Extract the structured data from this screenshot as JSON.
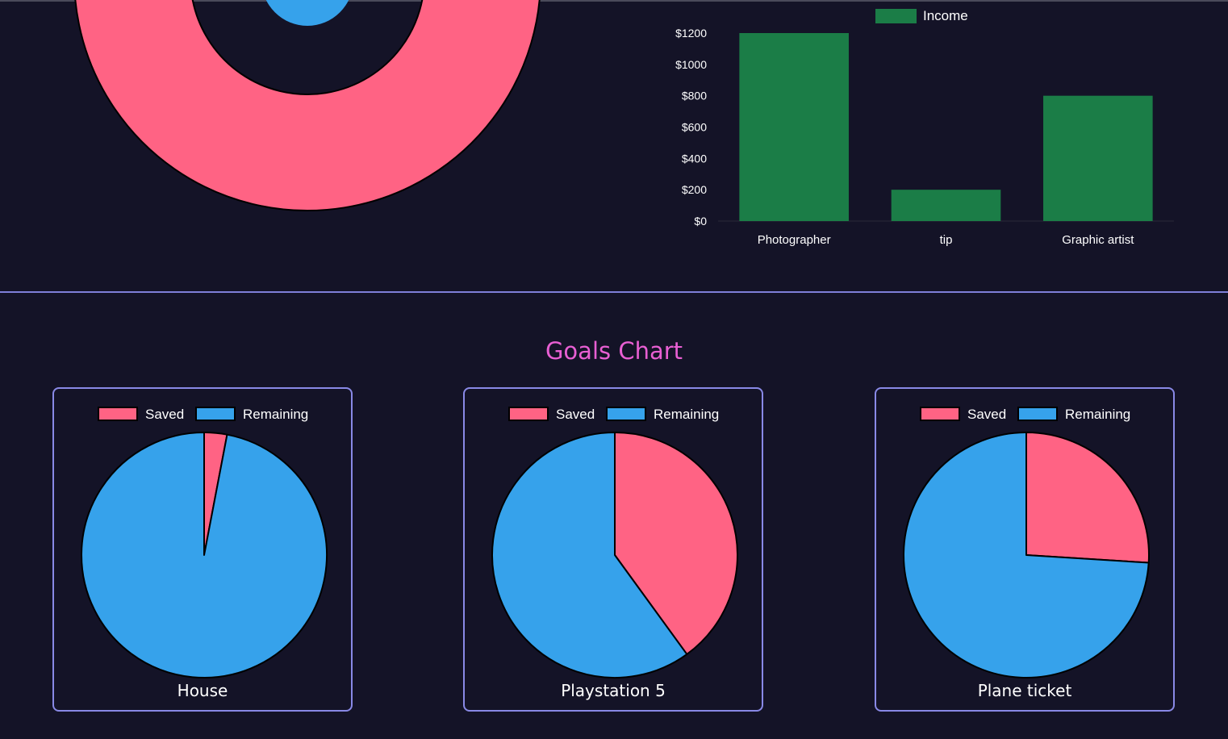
{
  "colors": {
    "background": "#141327",
    "saved": "#ff6384",
    "remaining": "#36a2eb",
    "income": "#1b7d47",
    "divider": "#7f7fd9",
    "title": "#e85fd3"
  },
  "chart_data": [
    {
      "type": "pie",
      "variant": "doughnut",
      "title": "",
      "note": "Top-left doughnut, cropped by the top edge of the viewport",
      "slices": [
        {
          "color": "#36a2eb",
          "start_deg": -58,
          "end_deg": 40,
          "visible": true
        },
        {
          "color": "#ff6384",
          "start_deg": 40,
          "end_deg": 302,
          "visible": true
        }
      ]
    },
    {
      "type": "bar",
      "title": "",
      "legend": [
        "Income"
      ],
      "categories": [
        "Photographer",
        "tip",
        "Graphic artist"
      ],
      "series": [
        {
          "name": "Income",
          "values": [
            1200,
            200,
            800
          ]
        }
      ],
      "ylim": [
        0,
        1200
      ],
      "yticks": [
        "$0",
        "$200",
        "$400",
        "$600",
        "$800",
        "$1000",
        "$1200"
      ],
      "xlabel": "",
      "ylabel": ""
    },
    {
      "type": "pie",
      "title": "House",
      "legend": [
        "Saved",
        "Remaining"
      ],
      "values": [
        3,
        97
      ]
    },
    {
      "type": "pie",
      "title": "Playstation 5",
      "legend": [
        "Saved",
        "Remaining"
      ],
      "values": [
        40,
        60
      ]
    },
    {
      "type": "pie",
      "title": "Plane ticket",
      "legend": [
        "Saved",
        "Remaining"
      ],
      "values": [
        26,
        74
      ]
    }
  ],
  "goals": {
    "title": "Goals Chart",
    "cards": [
      {
        "label": "House"
      },
      {
        "label": "Playstation 5"
      },
      {
        "label": "Plane ticket"
      }
    ]
  }
}
